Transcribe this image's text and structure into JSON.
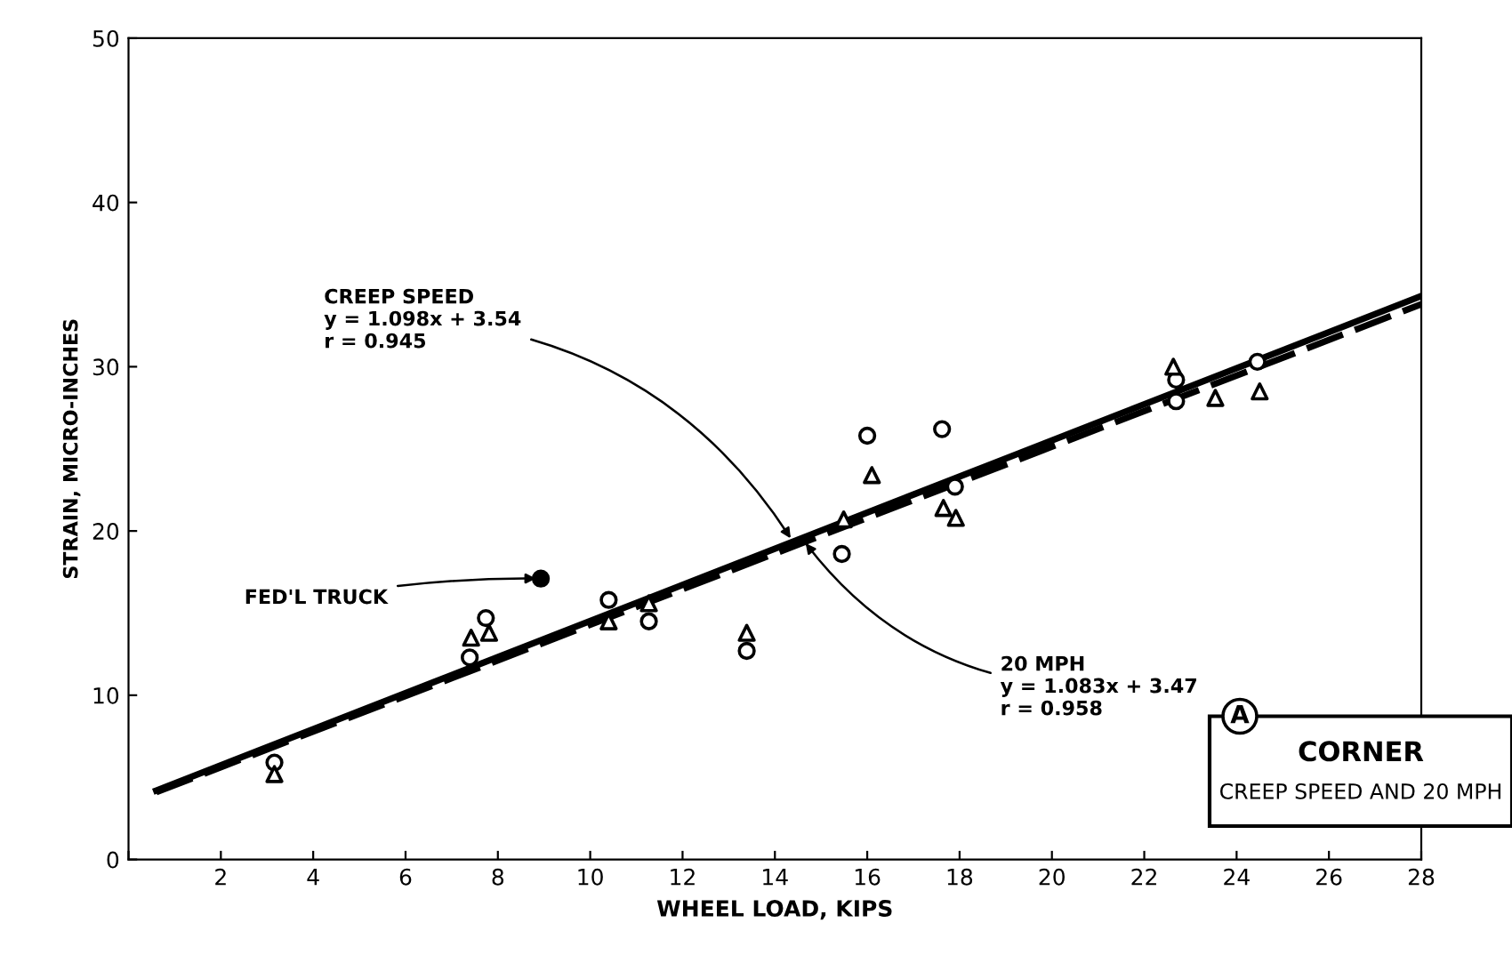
{
  "chart_data": {
    "type": "scatter",
    "title": "CORNER",
    "subtitle": "CREEP SPEED AND 20 MPH",
    "xlabel": "WHEEL LOAD, KIPS",
    "ylabel": "STRAIN, MICRO-INCHES",
    "xlim": [
      0,
      28
    ],
    "ylim": [
      0,
      50
    ],
    "xticks": [
      {
        "value": 0,
        "label": null
      },
      2,
      4,
      6,
      8,
      10,
      12,
      14,
      16,
      18,
      20,
      22,
      24,
      26,
      28
    ],
    "yticks": [
      0,
      10,
      20,
      30,
      40,
      50
    ],
    "grid": false,
    "legend": false,
    "series": [
      {
        "type": "scatter",
        "marker": "circle",
        "color": "#000000",
        "x": [
          3.16,
          7.74,
          7.39,
          10.4,
          11.27,
          13.39,
          15.45,
          16.0,
          17.62,
          17.9,
          22.69,
          22.69,
          24.45
        ],
        "values": [
          5.9,
          14.7,
          12.3,
          15.8,
          14.5,
          12.7,
          18.6,
          25.8,
          26.2,
          22.7,
          29.2,
          27.9,
          30.3
        ]
      },
      {
        "type": "scatter",
        "marker": "triangle",
        "color": "#000000",
        "x": [
          3.16,
          7.81,
          7.42,
          10.4,
          11.27,
          13.39,
          15.49,
          16.1,
          17.65,
          17.92,
          22.63,
          23.54,
          24.5
        ],
        "values": [
          5.2,
          13.8,
          13.5,
          14.5,
          15.6,
          13.8,
          20.7,
          23.4,
          21.4,
          20.8,
          30.0,
          28.1,
          28.5
        ]
      },
      {
        "type": "scatter",
        "marker": "circle",
        "color": "#000000",
        "x": [
          8.93
        ],
        "values": [
          17.1
        ]
      },
      {
        "type": "line",
        "marker": "none",
        "line_style": "solid",
        "color": "#000000",
        "x": [
          0.6,
          28
        ],
        "values": [
          4.2,
          34.3
        ]
      },
      {
        "type": "line",
        "marker": "none",
        "line_style": "dashed",
        "color": "#000000",
        "x": [
          0.6,
          28
        ],
        "values": [
          4.1,
          33.8
        ]
      }
    ],
    "annotations": [
      {
        "text": "CREEP SPEED\ny = 1.098x + 3.54\nr = 0.945",
        "x": 14.4,
        "y": 19.3
      },
      {
        "text": "20 MPH\ny = 1.083x + 3.47\nr = 0.958",
        "x": 14.6,
        "y": 19.5
      },
      {
        "text": "FED'L TRUCK",
        "x": 8.93,
        "y": 17.1
      },
      "A"
    ]
  }
}
